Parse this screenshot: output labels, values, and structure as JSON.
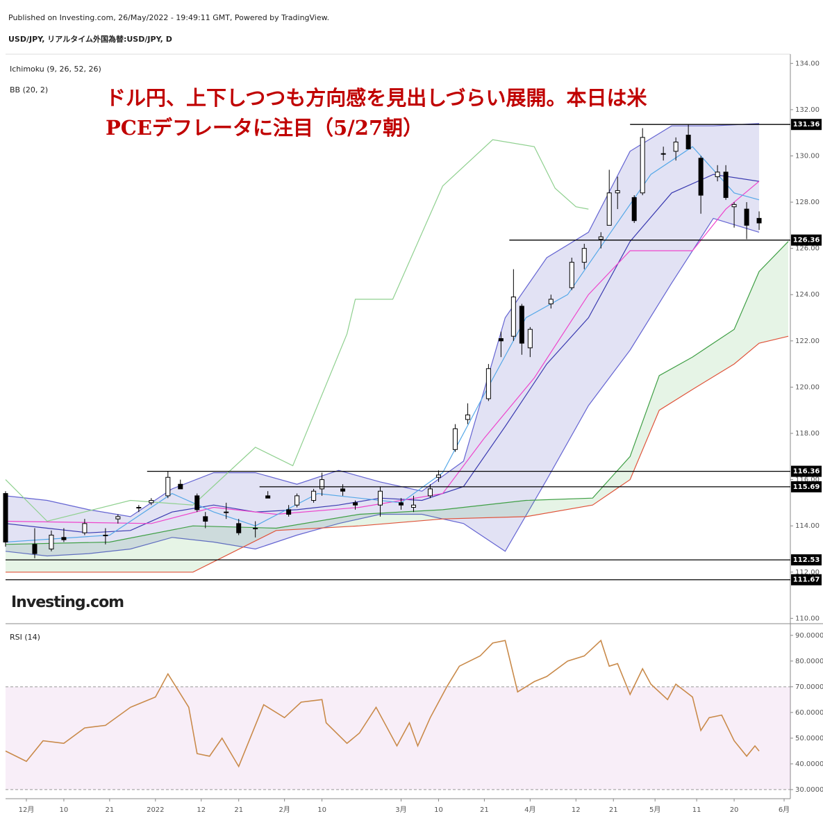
{
  "header": {
    "published": "Published on Investing.com, 26/May/2022 - 19:49:11 GMT, Powered by TradingView.",
    "symbol": "USD/JPY, リアルタイム外国為替:USD/JPY, D"
  },
  "logo": "Investing.com",
  "chart_data": [
    {
      "type": "candlestick",
      "title": [
        "ドル円、上下しつつも方向感を見出しづらい展開。本日は米",
        "PCEデフレータに注目（5/27朝）"
      ],
      "title_color": "#c00000",
      "indicators": [
        "Ichimoku (9, 26, 52, 26)",
        "BB (20, 2)"
      ],
      "xlim": [
        -5,
        183
      ],
      "ylim": [
        109.8,
        134.4
      ],
      "yticks": [
        {
          "value": 110,
          "label": "110.00"
        },
        {
          "value": 112,
          "label": "112.00"
        },
        {
          "value": 114,
          "label": "114.00"
        },
        {
          "value": 116,
          "label": "116.00"
        },
        {
          "value": 118,
          "label": "118.00"
        },
        {
          "value": 120,
          "label": "120.00"
        },
        {
          "value": 122,
          "label": "122.00"
        },
        {
          "value": 124,
          "label": "124.00"
        },
        {
          "value": 126,
          "label": "126.00"
        },
        {
          "value": 128,
          "label": "128.00"
        },
        {
          "value": 130,
          "label": "130.00"
        },
        {
          "value": 132,
          "label": "132.00"
        },
        {
          "value": 134,
          "label": "134.00"
        }
      ],
      "x": [
        -5,
        2,
        6,
        9,
        14,
        19,
        22,
        27,
        30,
        34,
        37,
        41,
        43,
        48,
        51,
        55,
        58,
        63,
        65,
        69,
        71,
        76,
        79,
        85,
        90,
        93,
        97,
        99,
        103,
        106,
        111,
        114,
        117,
        119,
        121,
        126,
        131,
        134,
        138,
        140,
        142,
        146,
        148,
        153,
        156,
        159,
        162,
        166,
        168,
        170,
        173,
        176
      ],
      "open": [
        115.4,
        113.2,
        113.0,
        113.5,
        113.7,
        113.6,
        114.3,
        114.8,
        115.0,
        115.3,
        115.8,
        115.3,
        114.4,
        114.6,
        114.1,
        113.9,
        115.3,
        114.7,
        114.9,
        115.1,
        115.6,
        115.6,
        115.0,
        114.9,
        115.0,
        114.8,
        115.3,
        116.1,
        117.3,
        118.6,
        119.5,
        122.1,
        122.2,
        123.5,
        121.7,
        123.6,
        124.3,
        125.4,
        126.4,
        127.0,
        128.4,
        128.2,
        128.4,
        130.1,
        130.2,
        130.9,
        129.9,
        129.1,
        129.3,
        127.8,
        127.7,
        127.3
      ],
      "high": [
        115.5,
        113.9,
        113.8,
        113.9,
        114.3,
        113.9,
        114.5,
        114.9,
        115.2,
        116.35,
        116.0,
        115.4,
        114.6,
        115.0,
        114.3,
        114.2,
        115.5,
        114.9,
        115.4,
        115.6,
        116.3,
        115.8,
        115.1,
        115.7,
        115.2,
        115.3,
        115.8,
        116.4,
        118.4,
        119.3,
        121.0,
        122.4,
        125.1,
        123.6,
        122.6,
        124.0,
        125.6,
        126.2,
        126.7,
        129.4,
        129.1,
        128.3,
        131.2,
        130.4,
        130.8,
        131.35,
        130.0,
        129.6,
        129.6,
        128.0,
        128.0,
        127.6
      ],
      "low": [
        113.1,
        112.6,
        112.9,
        113.3,
        113.6,
        113.2,
        114.1,
        114.6,
        114.9,
        115.2,
        115.6,
        114.6,
        113.9,
        114.3,
        113.6,
        113.5,
        115.2,
        114.4,
        114.8,
        115.0,
        115.3,
        115.3,
        114.7,
        114.4,
        114.7,
        114.6,
        115.2,
        115.9,
        117.2,
        118.4,
        119.4,
        121.3,
        122.0,
        121.4,
        121.3,
        123.4,
        124.2,
        125.1,
        126.0,
        127.0,
        127.7,
        127.1,
        128.3,
        129.8,
        129.8,
        130.3,
        127.5,
        128.9,
        128.1,
        126.9,
        126.4,
        126.8
      ],
      "close": [
        113.3,
        112.8,
        113.6,
        113.4,
        114.1,
        113.6,
        114.4,
        114.8,
        115.1,
        116.1,
        115.6,
        114.7,
        114.2,
        114.6,
        113.7,
        113.9,
        115.2,
        114.5,
        115.3,
        115.5,
        116.0,
        115.5,
        114.9,
        115.5,
        114.9,
        114.9,
        115.6,
        116.2,
        118.2,
        118.8,
        120.8,
        122.0,
        123.9,
        121.9,
        122.5,
        123.8,
        125.4,
        126.0,
        126.5,
        128.4,
        128.5,
        127.2,
        130.8,
        130.1,
        130.6,
        130.3,
        128.3,
        129.3,
        128.2,
        127.9,
        127.0,
        127.1
      ],
      "up_color": "#ffffff",
      "down_color": "#000000",
      "bands": [
        {
          "fill": "rgba(110,110,200,0.2)",
          "line_colors": [
            "#6464d2",
            "#6464d2"
          ],
          "x": [
            -5,
            5,
            15,
            25,
            35,
            45,
            55,
            65,
            75,
            85,
            95,
            105,
            115,
            125,
            135,
            145,
            155,
            165,
            176
          ],
          "upper": [
            115.3,
            115.1,
            114.7,
            114.4,
            115.6,
            116.3,
            116.3,
            115.8,
            116.4,
            115.9,
            115.5,
            116.8,
            123.0,
            125.6,
            126.7,
            130.2,
            131.3,
            131.3,
            131.4
          ],
          "lower": [
            112.9,
            112.7,
            112.8,
            113.0,
            113.5,
            113.3,
            113.0,
            113.6,
            114.1,
            114.5,
            114.5,
            114.1,
            112.9,
            116.0,
            119.2,
            121.6,
            124.5,
            127.3,
            126.7
          ]
        },
        {
          "fill": "rgba(76,175,80,0.14)",
          "line_colors": [
            "#3f9f45",
            "#e0533a"
          ],
          "x": [
            -5,
            20,
            40,
            60,
            80,
            100,
            120,
            136,
            145,
            152,
            160,
            170,
            176,
            183
          ],
          "upper": [
            113.2,
            113.3,
            114.0,
            113.9,
            114.5,
            114.7,
            115.1,
            115.2,
            117.0,
            120.5,
            121.3,
            122.5,
            125.0,
            126.3
          ],
          "lower": [
            112.0,
            112.0,
            112.0,
            113.8,
            114.0,
            114.3,
            114.4,
            114.9,
            116.0,
            119.0,
            119.9,
            121.0,
            121.9,
            122.2
          ]
        }
      ],
      "lines": [
        {
          "color": "#3a3ab0",
          "x": [
            -5,
            5,
            15,
            25,
            35,
            45,
            55,
            65,
            75,
            85,
            95,
            105,
            115,
            125,
            135,
            145,
            155,
            165,
            176
          ],
          "values": [
            114.1,
            113.9,
            113.7,
            113.8,
            114.6,
            114.9,
            114.6,
            114.7,
            114.9,
            115.2,
            115.1,
            115.7,
            118.3,
            121.0,
            123.0,
            126.3,
            128.4,
            129.2,
            128.9
          ]
        },
        {
          "color": "#ee44cc",
          "x": [
            -5,
            30,
            45,
            60,
            80,
            100,
            110,
            122,
            135,
            145,
            160,
            168,
            176
          ],
          "values": [
            114.2,
            114.1,
            114.8,
            114.5,
            114.8,
            115.4,
            117.8,
            120.4,
            124.0,
            125.9,
            125.9,
            127.7,
            128.9
          ]
        },
        {
          "color": "#55a8e8",
          "x": [
            -5,
            20,
            35,
            45,
            55,
            70,
            90,
            100,
            110,
            120,
            130,
            140,
            150,
            160,
            170,
            176
          ],
          "values": [
            113.3,
            113.6,
            115.4,
            114.6,
            114.0,
            115.4,
            115.0,
            116.3,
            119.7,
            123.0,
            124.0,
            126.6,
            129.2,
            130.4,
            128.4,
            128.1
          ]
        },
        {
          "color": "#8fd08f",
          "x": [
            -5,
            5,
            25,
            40,
            55,
            64,
            77,
            79,
            88,
            100,
            112,
            122,
            127,
            132,
            135
          ],
          "values": [
            116.0,
            114.2,
            115.1,
            114.9,
            117.4,
            116.6,
            122.3,
            123.8,
            123.8,
            128.7,
            130.7,
            130.4,
            128.6,
            127.8,
            127.7
          ]
        }
      ],
      "levels": [
        {
          "value": 131.36,
          "start": 145
        },
        {
          "value": 126.36,
          "start": 116
        },
        {
          "value": 116.36,
          "start": 29
        },
        {
          "value": 115.69,
          "start": 56
        },
        {
          "value": 112.53,
          "start": -5
        },
        {
          "value": 111.67,
          "start": -5
        }
      ]
    },
    {
      "type": "line",
      "title": "RSI (14)",
      "color": "#c98a4a",
      "band": [
        30,
        70
      ],
      "band_fill": "rgba(200,120,200,0.13)",
      "xlim": [
        -5,
        183
      ],
      "ylim": [
        27,
        94
      ],
      "yticks": [
        {
          "value": 30,
          "label": "30.0000"
        },
        {
          "value": 40,
          "label": "40.0000"
        },
        {
          "value": 50,
          "label": "50.0000"
        },
        {
          "value": 60,
          "label": "60.0000"
        },
        {
          "value": 70,
          "label": "70.0000"
        },
        {
          "value": 80,
          "label": "80.0000"
        },
        {
          "value": 90,
          "label": "90.0000"
        }
      ],
      "xticks": [
        {
          "value": 0,
          "label": "12月"
        },
        {
          "value": 9,
          "label": "10"
        },
        {
          "value": 20,
          "label": "21"
        },
        {
          "value": 31,
          "label": "2022"
        },
        {
          "value": 42,
          "label": "12"
        },
        {
          "value": 51,
          "label": "21"
        },
        {
          "value": 62,
          "label": "2月"
        },
        {
          "value": 71,
          "label": "10"
        },
        {
          "value": 90,
          "label": "3月"
        },
        {
          "value": 99,
          "label": "10"
        },
        {
          "value": 110,
          "label": "21"
        },
        {
          "value": 121,
          "label": "4月"
        },
        {
          "value": 132,
          "label": "12"
        },
        {
          "value": 141,
          "label": "21"
        },
        {
          "value": 151,
          "label": "5月"
        },
        {
          "value": 161,
          "label": "11"
        },
        {
          "value": 170,
          "label": "20"
        },
        {
          "value": 182,
          "label": "6月"
        }
      ],
      "x": [
        -5,
        0,
        4,
        9,
        14,
        19,
        25,
        31,
        34,
        39,
        41,
        44,
        47,
        51,
        57,
        62,
        66,
        71,
        72,
        77,
        80,
        84,
        89,
        92,
        94,
        97,
        101,
        104,
        109,
        112,
        115,
        118,
        122,
        125,
        130,
        134,
        138,
        140,
        142,
        145,
        148,
        150,
        154,
        156,
        160,
        162,
        164,
        167,
        170,
        173,
        175,
        176
      ],
      "values": [
        45,
        41,
        49,
        48,
        54,
        55,
        62,
        66,
        75,
        62,
        44,
        43,
        50,
        39,
        63,
        58,
        64,
        65,
        56,
        48,
        52,
        62,
        47,
        56,
        47,
        58,
        70,
        78,
        82,
        87,
        88,
        68,
        72,
        74,
        80,
        82,
        88,
        78,
        79,
        67,
        77,
        71,
        65,
        71,
        66,
        53,
        58,
        59,
        49,
        43,
        47,
        45
      ]
    }
  ]
}
